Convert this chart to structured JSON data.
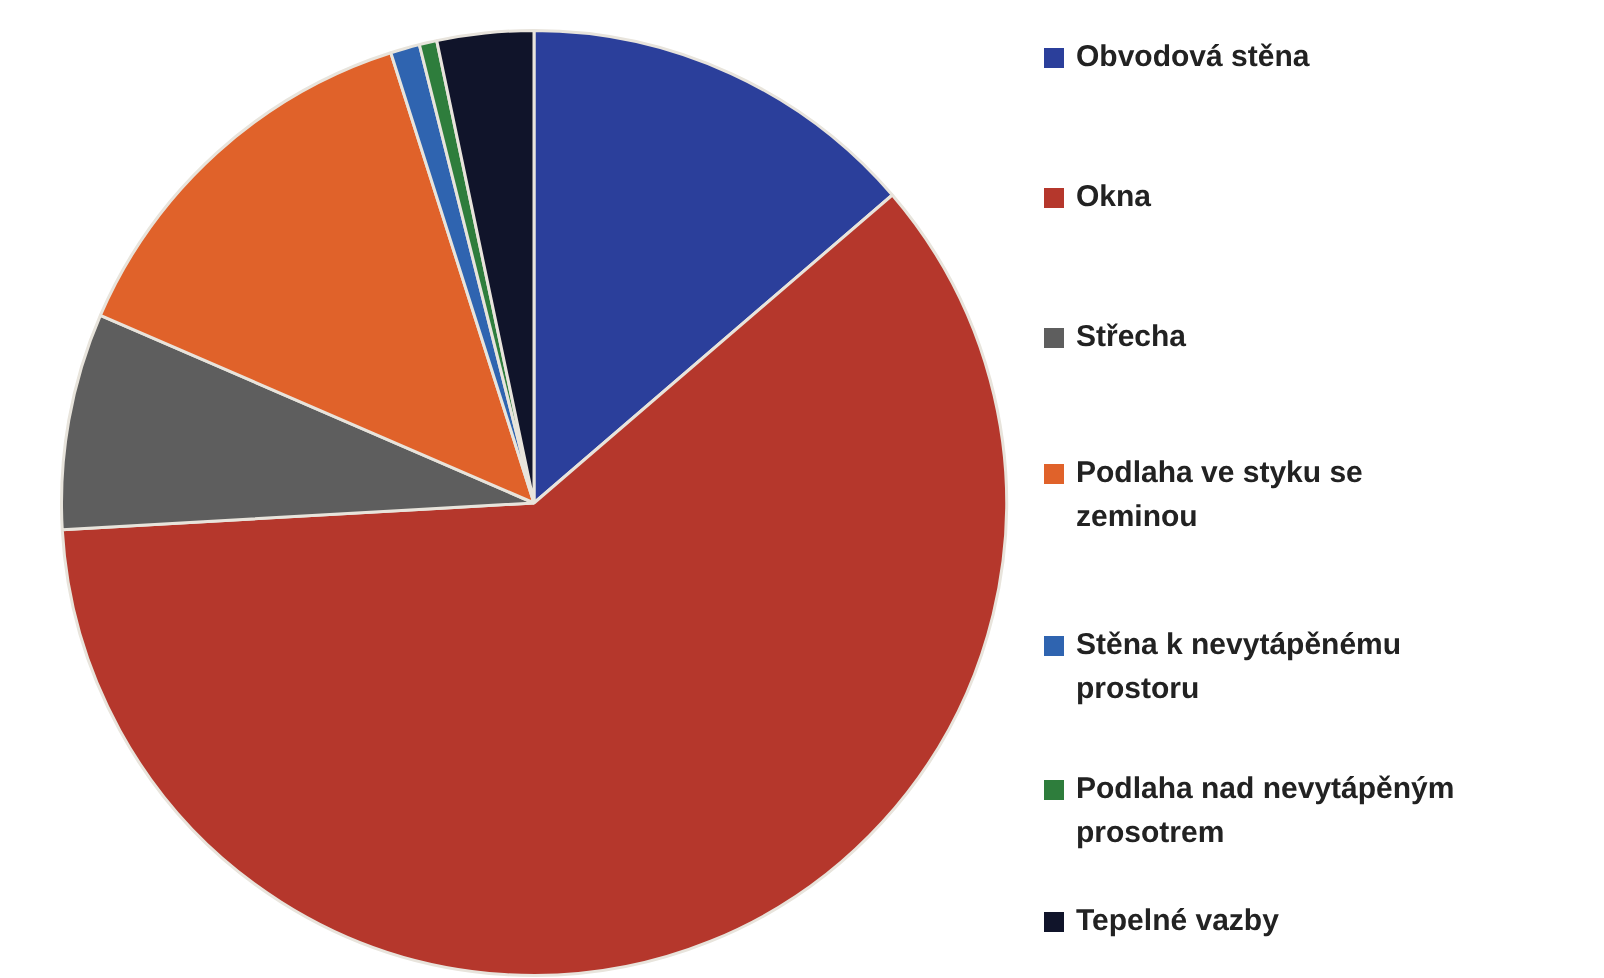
{
  "chart_data": {
    "type": "pie",
    "legend": "right",
    "categories": [
      "Obvodová stěna",
      "Okna",
      "Střecha",
      "Podlaha ve styku se zeminou",
      "Stěna k nevytápěnému prostoru",
      "Podlaha nad nevytápěným prosotrem",
      "Tepelné vazby"
    ],
    "values": [
      13.7,
      60.4,
      7.4,
      13.6,
      1,
      0.6,
      3.3
    ],
    "colors": [
      "#2b3f9b",
      "#b5372c",
      "#5e5e5e",
      "#e0622a",
      "#2f64b0",
      "#2e7d3c",
      "#10142a"
    ]
  }
}
